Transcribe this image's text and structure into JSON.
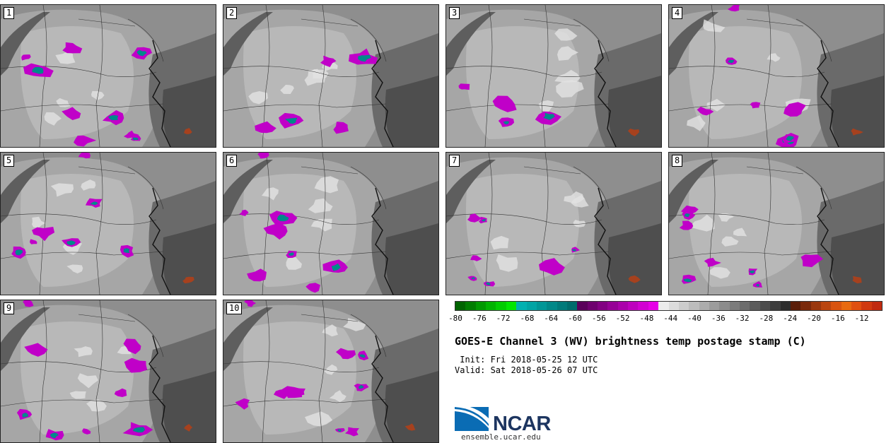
{
  "panels": [
    "1",
    "2",
    "3",
    "4",
    "5",
    "6",
    "7",
    "8",
    "9",
    "10"
  ],
  "colorbar": {
    "ticks": [
      "-80",
      "-76",
      "-72",
      "-68",
      "-64",
      "-60",
      "-56",
      "-52",
      "-48",
      "-44",
      "-40",
      "-36",
      "-32",
      "-28",
      "-24",
      "-20",
      "-16",
      "-12"
    ],
    "colors": [
      "#006400",
      "#007d00",
      "#009900",
      "#00b300",
      "#00cc00",
      "#00e600",
      "#00b0b0",
      "#00a4a4",
      "#009696",
      "#008888",
      "#007a7a",
      "#006c6c",
      "#5a005a",
      "#6e006e",
      "#820082",
      "#960096",
      "#aa00aa",
      "#be00be",
      "#d200d2",
      "#e600e6",
      "#ececec",
      "#dcdcdc",
      "#cccccc",
      "#bcbcbc",
      "#acacac",
      "#9c9c9c",
      "#8c8c8c",
      "#7c7c7c",
      "#6c6c6c",
      "#5c5c5c",
      "#4c4c4c",
      "#3c3c3c",
      "#2c2c2c",
      "#5a1e0a",
      "#7a2a0c",
      "#9a380e",
      "#ba4610",
      "#d85410",
      "#e86a10",
      "#e05010",
      "#d03a10",
      "#c02a10"
    ]
  },
  "title": "GOES-E Channel 3 (WV) brightness temp postage stamp (C)",
  "init_line": " Init: Fri 2018-05-25 12 UTC",
  "valid_line": "Valid: Sat 2018-05-26 07 UTC",
  "logo": {
    "text": "NCAR",
    "url": "ensemble.ucar.edu",
    "colors": {
      "blue": "#0a6cb4",
      "navy": "#1d3560"
    }
  }
}
